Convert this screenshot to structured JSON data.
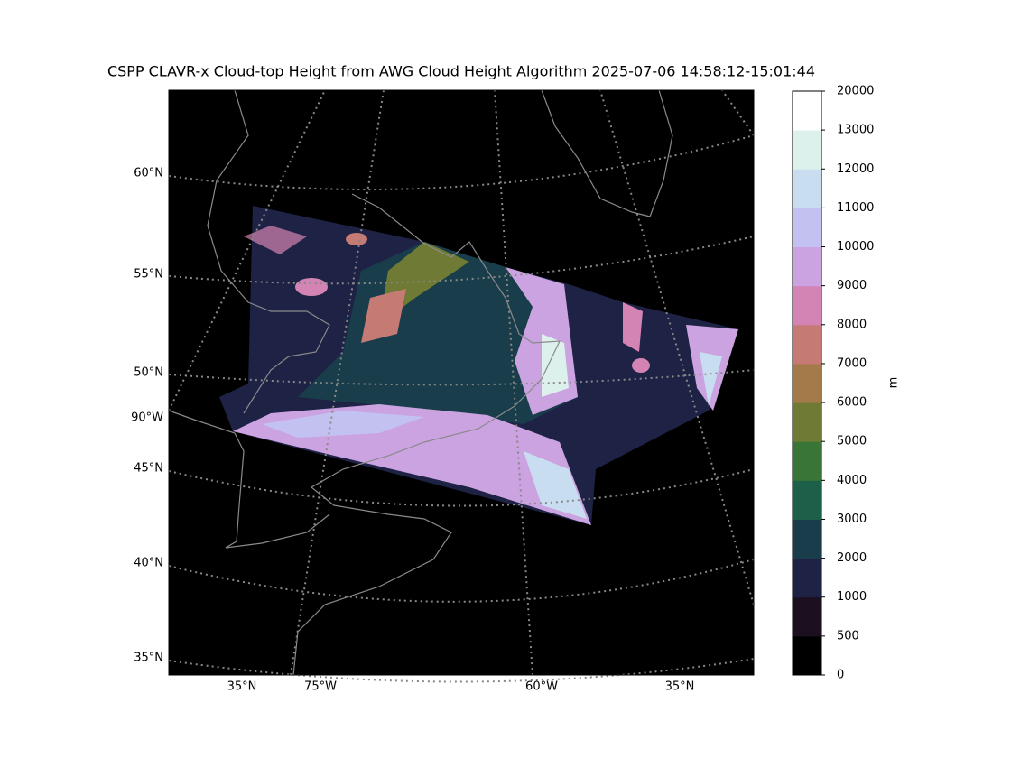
{
  "map": {
    "title": "CSPP CLAVR-x Cloud-top Height from AWG Cloud Height Algorithm 2025-07-06 14:58:12-15:01:44",
    "left_labels": [
      "60°N",
      "55°N",
      "50°N",
      "90°W",
      "45°N",
      "40°N",
      "35°N"
    ],
    "bottom_labels": [
      "35°N",
      "75°W",
      "60°W",
      "35°N"
    ]
  },
  "colorbar": {
    "label": "m",
    "levels": [
      0,
      500,
      1000,
      2000,
      3000,
      4000,
      5000,
      6000,
      7000,
      8000,
      9000,
      10000,
      11000,
      12000,
      13000,
      20000
    ],
    "colors": [
      "#000000",
      "#1b0f20",
      "#1e2245",
      "#193d4a",
      "#1c6049",
      "#3a7538",
      "#6f7b34",
      "#a47a4a",
      "#c57a74",
      "#d384b4",
      "#cba3e0",
      "#c2c1ef",
      "#c8def0",
      "#dcf0ec",
      "#ffffff"
    ]
  }
}
